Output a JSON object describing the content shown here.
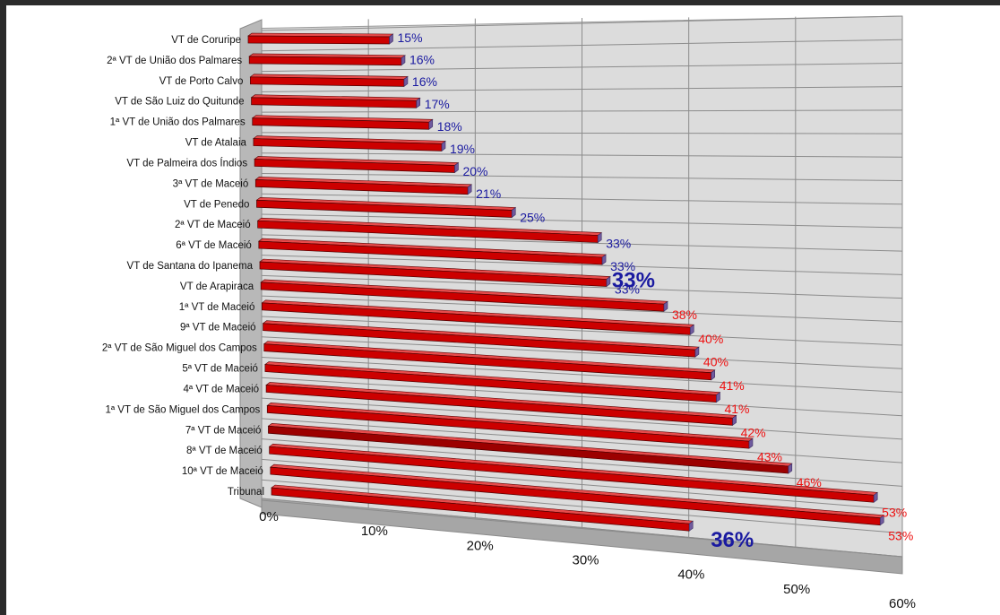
{
  "chart_data": {
    "type": "bar",
    "orientation": "horizontal",
    "title": "",
    "xlabel": "",
    "ylabel": "",
    "xlim": [
      0,
      60
    ],
    "x_ticks": [
      "0%",
      "10%",
      "20%",
      "30%",
      "40%",
      "50%",
      "60%"
    ],
    "grid": true,
    "legend": "none",
    "bar_color": "#cc0000",
    "highlight_color": "#9c0000",
    "label_color_low": "#1a1aa0",
    "label_color_high": "#ee1111",
    "callouts": [
      {
        "text": "33%",
        "near": "VT de Santana do Ipanema"
      },
      {
        "text": "36%",
        "near": "Tribunal"
      }
    ],
    "categories": [
      "VT de Coruripe",
      "2ª VT de União dos Palmares",
      "VT de Porto Calvo",
      "VT de São Luiz do Quitunde",
      "1ª VT de União dos Palmares",
      "VT de Atalaia",
      "VT de Palmeira dos Índios",
      "3ª VT de Maceió",
      "VT de Penedo",
      "2ª VT de Maceió",
      "6ª VT de Maceió",
      "VT de Santana do Ipanema",
      "VT de Arapiraca",
      "1ª VT de Maceió",
      "9ª VT de Maceió",
      "2ª VT de São Miguel dos Campos",
      "5ª VT de Maceió",
      "4ª VT de Maceió",
      "1ª VT de São Miguel dos Campos",
      "7ª VT de Maceió",
      "8ª VT de Maceió",
      "10ª VT de Maceió",
      "Tribunal"
    ],
    "values": [
      15,
      16,
      16,
      17,
      18,
      19,
      20,
      21,
      25,
      33,
      33,
      33,
      38,
      40,
      40,
      41,
      41,
      42,
      43,
      46,
      53,
      53,
      36
    ],
    "value_labels": [
      "15%",
      "16%",
      "16%",
      "17%",
      "18%",
      "19%",
      "20%",
      "21%",
      "25%",
      "33%",
      "33%",
      "33%",
      "38%",
      "40%",
      "40%",
      "41%",
      "41%",
      "42%",
      "43%",
      "46%",
      "53%",
      "53%",
      ""
    ],
    "highlight": "7ª VT de Maceió"
  }
}
